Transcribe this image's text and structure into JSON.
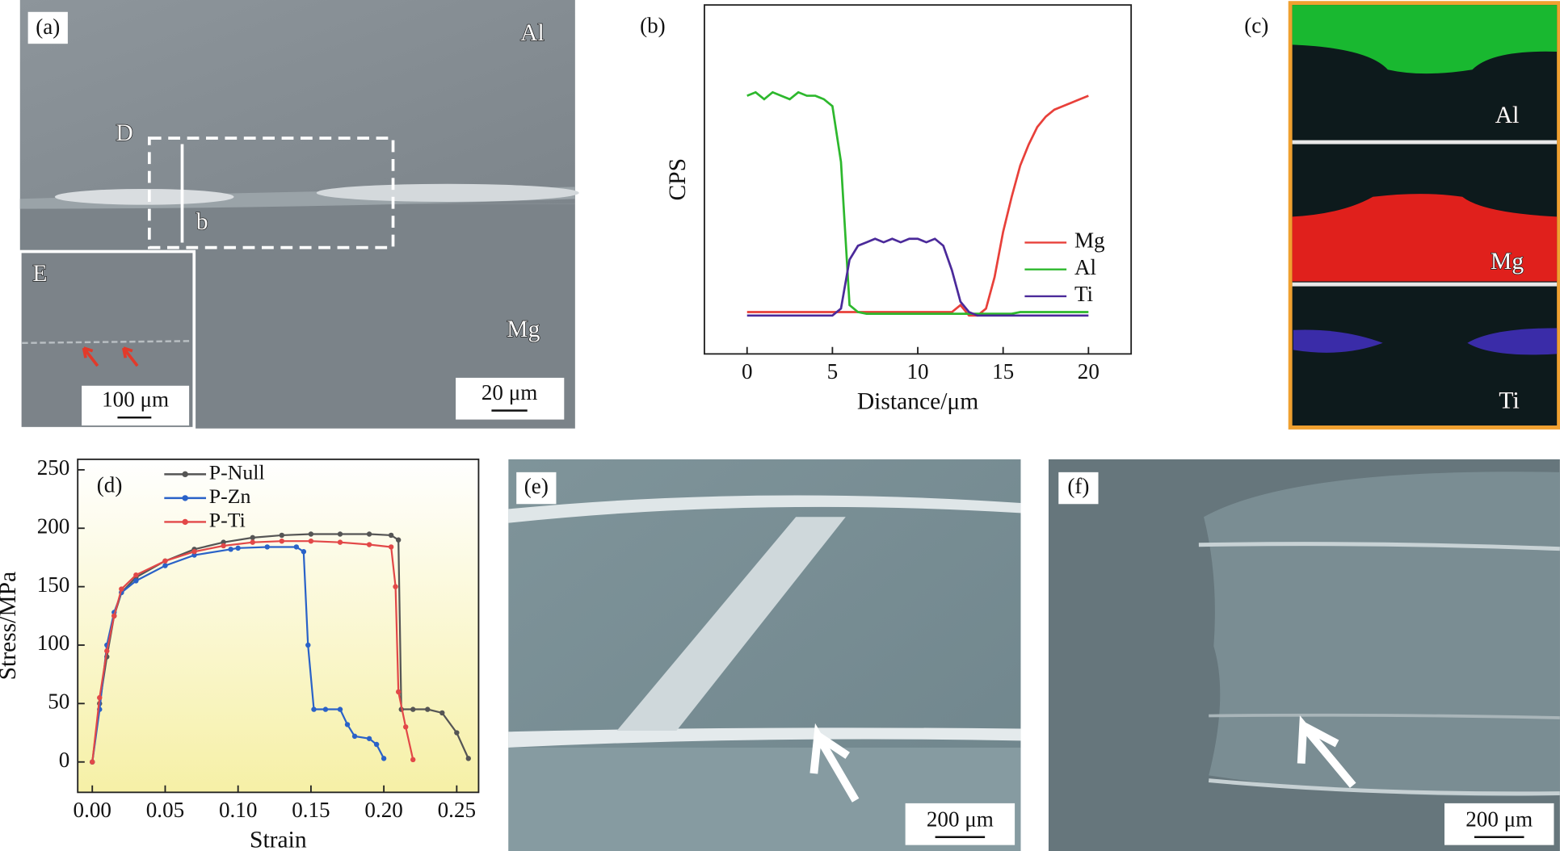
{
  "chart_data": [
    {
      "type": "line",
      "label": "(b)",
      "xlabel": "Distance/μm",
      "ylabel": "CPS",
      "legend": "lower right",
      "xlim": [
        -2.5,
        22.5
      ],
      "xticks": [
        0,
        5,
        10,
        15,
        20
      ],
      "ylim": [
        0,
        100
      ],
      "markers": false,
      "x": [
        0,
        0.5,
        1,
        1.5,
        2,
        2.5,
        3,
        3.5,
        4,
        4.5,
        5,
        5.5,
        6,
        6.5,
        7,
        7.5,
        8,
        8.5,
        9,
        9.5,
        10,
        10.5,
        11,
        11.5,
        12,
        12.5,
        13,
        13.5,
        14,
        14.5,
        15,
        15.5,
        16,
        16.5,
        17,
        17.5,
        18,
        18.5,
        19,
        19.5,
        20
      ],
      "series": [
        {
          "name": "Mg",
          "color": "#e8403a",
          "values": [
            12,
            12,
            12,
            12,
            12,
            12,
            12,
            12,
            12,
            12,
            12,
            12,
            12,
            12,
            12,
            12,
            12,
            12,
            12,
            12,
            12,
            12,
            12,
            12,
            12,
            14,
            11,
            11,
            13,
            22,
            35,
            45,
            54,
            60,
            65,
            68,
            70,
            71,
            72,
            73,
            74
          ]
        },
        {
          "name": "Al",
          "color": "#2db82d",
          "values": [
            74,
            75,
            73,
            75,
            74,
            73,
            75,
            74,
            74,
            73,
            71,
            55,
            14,
            12,
            11.5,
            11.5,
            11.5,
            11.5,
            11.5,
            11.5,
            11.5,
            11.5,
            11.5,
            11.5,
            11.5,
            11.5,
            11.5,
            11.5,
            11.5,
            11.5,
            11.5,
            11.5,
            12,
            12,
            12,
            12,
            12,
            12,
            12,
            12,
            12
          ]
        },
        {
          "name": "Ti",
          "color": "#4b2a9a",
          "values": [
            11,
            11,
            11,
            11,
            11,
            11,
            11,
            11,
            11,
            11,
            11,
            13,
            27,
            31,
            32,
            33,
            32,
            33,
            32,
            33,
            33,
            32,
            33,
            31,
            24,
            15,
            12,
            11,
            11,
            11,
            11,
            11,
            11,
            11,
            11,
            11,
            11,
            11,
            11,
            11,
            11
          ]
        }
      ]
    },
    {
      "type": "line",
      "label": "(d)",
      "xlabel": "Strain",
      "ylabel": "Stress/MPa",
      "legend": "upper left",
      "xlim": [
        -0.01,
        0.265
      ],
      "ylim": [
        -26,
        259
      ],
      "markers": true,
      "xticks": [
        {
          "value": 0,
          "label": "0.00"
        },
        {
          "value": 0.05,
          "label": "0.05"
        },
        {
          "value": 0.1,
          "label": "0.10"
        },
        {
          "value": 0.15,
          "label": "0.15"
        },
        {
          "value": 0.2,
          "label": "0.20"
        },
        {
          "value": 0.25,
          "label": "0.25"
        }
      ],
      "yticks": [
        0,
        50,
        100,
        150,
        200,
        250
      ],
      "series": [
        {
          "name": "P-Null",
          "color": "#555555",
          "x": [
            0,
            0.005,
            0.01,
            0.015,
            0.02,
            0.03,
            0.05,
            0.07,
            0.09,
            0.11,
            0.13,
            0.15,
            0.17,
            0.19,
            0.205,
            0.21,
            0.212,
            0.22,
            0.23,
            0.24,
            0.25,
            0.258
          ],
          "values": [
            0,
            50,
            90,
            125,
            145,
            158,
            172,
            182,
            188,
            192,
            194,
            195,
            195,
            195,
            194,
            190,
            45,
            45,
            45,
            42,
            25,
            3
          ]
        },
        {
          "name": "P-Zn",
          "color": "#2a62c8",
          "x": [
            0,
            0.005,
            0.01,
            0.015,
            0.02,
            0.03,
            0.05,
            0.07,
            0.095,
            0.1,
            0.12,
            0.14,
            0.145,
            0.148,
            0.152,
            0.16,
            0.17,
            0.175,
            0.18,
            0.19,
            0.195,
            0.2
          ],
          "values": [
            0,
            45,
            100,
            128,
            145,
            155,
            168,
            177,
            182,
            183,
            184,
            184,
            180,
            100,
            45,
            45,
            45,
            32,
            22,
            20,
            15,
            3
          ]
        },
        {
          "name": "P-Ti",
          "color": "#e24848",
          "x": [
            0,
            0.005,
            0.01,
            0.015,
            0.02,
            0.03,
            0.05,
            0.07,
            0.09,
            0.11,
            0.13,
            0.15,
            0.17,
            0.19,
            0.205,
            0.208,
            0.21,
            0.215,
            0.22
          ],
          "values": [
            0,
            55,
            95,
            125,
            148,
            160,
            172,
            180,
            185,
            188,
            189,
            189,
            188,
            186,
            184,
            150,
            60,
            30,
            2
          ]
        }
      ]
    }
  ],
  "panels": {
    "a": {
      "label": "(a)",
      "top": "Al",
      "box": "D",
      "line": "b",
      "inset": "E",
      "bottom": "Mg",
      "inset_scale": "100 μm",
      "scale": "20 μm"
    },
    "c": {
      "label": "(c)",
      "maps": [
        "Al",
        "Mg",
        "Ti"
      ]
    },
    "e": {
      "label": "(e)",
      "scale": "200 μm"
    },
    "f": {
      "label": "(f)",
      "scale": "200 μm"
    }
  }
}
